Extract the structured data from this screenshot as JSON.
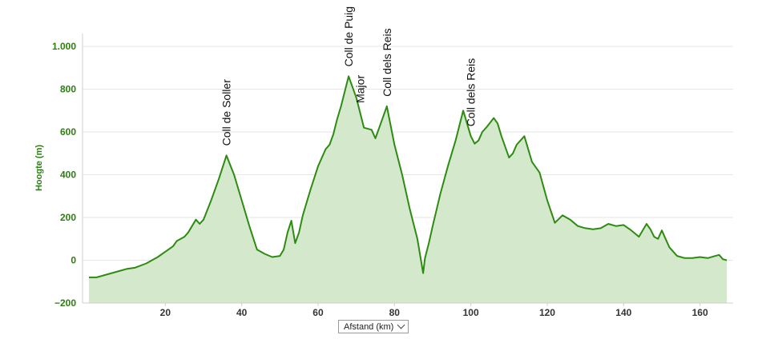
{
  "chart_data": {
    "type": "area",
    "title": "",
    "xlabel": "",
    "ylabel": "Hoogte (m)",
    "xlim": [
      0,
      167
    ],
    "ylim": [
      -200,
      1000
    ],
    "x_ticks": [
      20,
      40,
      60,
      80,
      100,
      120,
      140,
      160
    ],
    "y_ticks": [
      -200,
      0,
      200,
      400,
      600,
      800,
      1000
    ],
    "y_tick_labels": [
      "−200",
      "0",
      "200",
      "400",
      "600",
      "800",
      "1.000"
    ],
    "x_tick_labels": [
      "20",
      "40",
      "60",
      "80",
      "100",
      "120",
      "140",
      "160"
    ],
    "grid": true,
    "line_color": "#2e8b12",
    "fill_color": "#d4e8cb",
    "series": [
      {
        "x": [
          0,
          2,
          5,
          8,
          10,
          12,
          15,
          18,
          20,
          22,
          23,
          24,
          25,
          26,
          27,
          28,
          29,
          30,
          32,
          34,
          36,
          38,
          40,
          42,
          44,
          45,
          46,
          48,
          50,
          51,
          52,
          53,
          54,
          55,
          56,
          58,
          60,
          62,
          63,
          64,
          65,
          66,
          68,
          70,
          72,
          74,
          75,
          76,
          78,
          80,
          82,
          84,
          86,
          87.5,
          88,
          89,
          90,
          92,
          94,
          96,
          98,
          100,
          101,
          102,
          103,
          104,
          106,
          107,
          108,
          110,
          111,
          112,
          114,
          116,
          118,
          120,
          122,
          124,
          126,
          128,
          130,
          132,
          134,
          136,
          138,
          140,
          142,
          144,
          146,
          147,
          148,
          149,
          150,
          151,
          152,
          154,
          156,
          158,
          160,
          162,
          164,
          165,
          166,
          167
        ],
        "values": [
          -80,
          -80,
          -65,
          -50,
          -40,
          -35,
          -15,
          15,
          40,
          65,
          90,
          100,
          110,
          130,
          160,
          190,
          170,
          190,
          280,
          380,
          490,
          400,
          280,
          160,
          50,
          40,
          30,
          15,
          20,
          50,
          130,
          185,
          80,
          130,
          210,
          330,
          440,
          520,
          540,
          590,
          660,
          720,
          860,
          760,
          620,
          610,
          570,
          620,
          720,
          540,
          400,
          240,
          100,
          -60,
          10,
          80,
          160,
          310,
          440,
          560,
          700,
          580,
          545,
          560,
          600,
          620,
          665,
          640,
          580,
          480,
          500,
          540,
          580,
          460,
          410,
          280,
          175,
          210,
          190,
          160,
          150,
          145,
          150,
          170,
          160,
          165,
          140,
          110,
          170,
          145,
          110,
          100,
          140,
          100,
          60,
          20,
          10,
          10,
          15,
          10,
          20,
          25,
          5,
          0
        ]
      }
    ],
    "annotations": [
      {
        "text": "Coll de Soller",
        "x": 36
      },
      {
        "text": "Coll de Puig",
        "x": 68
      },
      {
        "text": "Major",
        "x": 71
      },
      {
        "text": "Coll dels Reis",
        "x": 78
      },
      {
        "text": "Coll dels Reis",
        "x": 100
      }
    ]
  },
  "controls": {
    "xaxis_select_label": "Afstand (km)"
  }
}
